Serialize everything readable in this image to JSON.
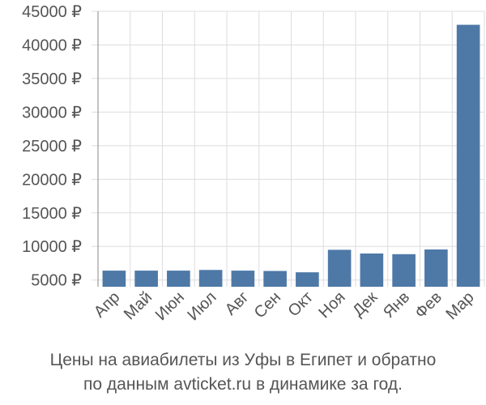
{
  "chart_data": {
    "type": "bar",
    "categories": [
      "Апр",
      "Май",
      "Июн",
      "Июл",
      "Авг",
      "Сен",
      "Окт",
      "Ноя",
      "Дек",
      "Янв",
      "Фев",
      "Мар"
    ],
    "values": [
      6400,
      6400,
      6400,
      6500,
      6400,
      6350,
      6150,
      9500,
      8950,
      8850,
      9550,
      43000
    ],
    "yticks": [
      "5000 ₽",
      "10000 ₽",
      "15000 ₽",
      "20000 ₽",
      "25000 ₽",
      "30000 ₽",
      "35000 ₽",
      "40000 ₽",
      "45000 ₽"
    ],
    "ylim": [
      4000,
      45000
    ],
    "grid": true,
    "bar_color": "#4e79a7"
  },
  "caption": {
    "line1": "Цены на авиабилеты из Уфы в Египет и обратно",
    "line2": "по данным avticket.ru в динамике за год."
  }
}
